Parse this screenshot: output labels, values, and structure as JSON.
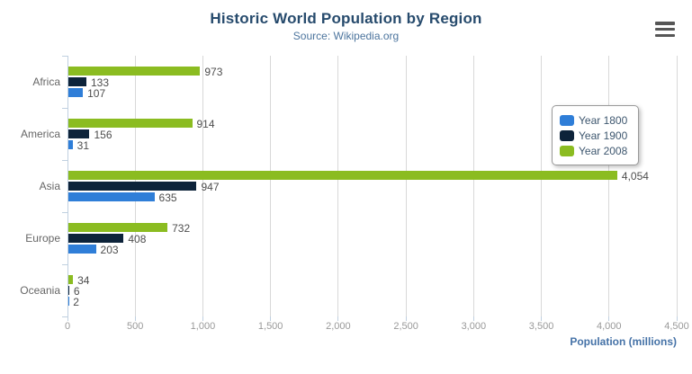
{
  "chart_data": {
    "type": "bar",
    "title": "Historic World Population by Region",
    "subtitle": "Source: Wikipedia.org",
    "categories": [
      "Africa",
      "America",
      "Asia",
      "Europe",
      "Oceania"
    ],
    "series": [
      {
        "name": "Year 1800",
        "color": "#2f7ed8",
        "values": [
          107,
          31,
          635,
          203,
          2
        ]
      },
      {
        "name": "Year 1900",
        "color": "#0d233a",
        "values": [
          133,
          156,
          947,
          408,
          6
        ]
      },
      {
        "name": "Year 2008",
        "color": "#8bbc21",
        "values": [
          973,
          914,
          4054,
          732,
          34
        ]
      }
    ],
    "series_draw_order_top_to_bottom": [
      "Year 2008",
      "Year 1900",
      "Year 1800"
    ],
    "xlabel": "Population (millions)",
    "ylabel": "",
    "xlim": [
      0,
      4500
    ],
    "xticks": [
      0,
      500,
      1000,
      1500,
      2000,
      2500,
      3000,
      3500,
      4000,
      4500
    ],
    "grid": true,
    "data_labels": true,
    "data_label_format": "comma-thousands",
    "legend_position": "right-middle"
  },
  "palette": {
    "title_color": "#274b6d",
    "subtitle_color": "#4d759e",
    "axis_title_color": "#4572a7",
    "grid_color": "#d8d8d8",
    "axis_line_color": "#c0d0e0",
    "tick_label_color": "#999999",
    "category_label_color": "#666666",
    "data_label_color": "#4d4d4d",
    "legend_text_color": "#3e576f",
    "menu_icon_color": "#565656"
  }
}
